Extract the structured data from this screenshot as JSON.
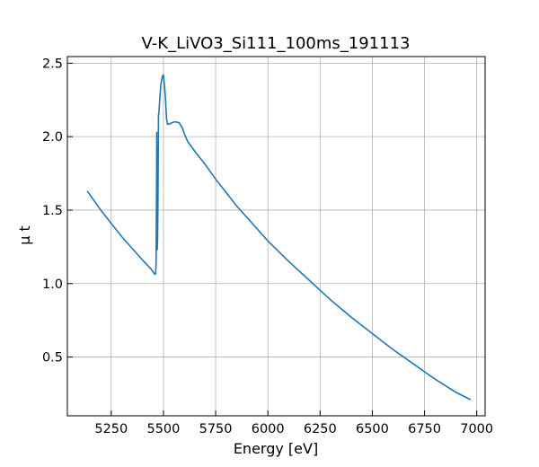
{
  "chart_data": {
    "type": "line",
    "title": "V-K_LiVO3_Si111_100ms_191113",
    "xlabel": "Energy [eV]",
    "ylabel": "μ t",
    "xlim": [
      5040,
      7040
    ],
    "ylim": [
      0.1,
      2.545
    ],
    "xticks": [
      5250,
      5500,
      5750,
      6000,
      6250,
      6500,
      6750,
      7000
    ],
    "yticks": [
      0.5,
      1.0,
      1.5,
      2.0,
      2.5
    ],
    "xtick_labels": [
      "5250",
      "5500",
      "5750",
      "6000",
      "6250",
      "6500",
      "6750",
      "7000"
    ],
    "ytick_labels": [
      "0.5",
      "1.0",
      "1.5",
      "2.0",
      "2.5"
    ],
    "grid": true,
    "series": [
      {
        "name": "",
        "color": "#1f77b4",
        "x": [
          5135,
          5200,
          5300,
          5400,
          5440,
          5455,
          5460,
          5463,
          5465,
          5467,
          5468,
          5469,
          5470,
          5472,
          5474,
          5476,
          5478,
          5482,
          5488,
          5495,
          5500,
          5505,
          5510,
          5515,
          5520,
          5525,
          5535,
          5550,
          5560,
          5575,
          5590,
          5600,
          5615,
          5630,
          5650,
          5700,
          5750,
          5800,
          5850,
          5900,
          6000,
          6100,
          6200,
          6300,
          6400,
          6500,
          6600,
          6700,
          6800,
          6900,
          6970
        ],
        "y": [
          1.63,
          1.5,
          1.32,
          1.16,
          1.1,
          1.07,
          1.062,
          1.07,
          1.15,
          1.7,
          2.03,
          1.7,
          1.23,
          1.3,
          1.6,
          2.15,
          2.15,
          2.25,
          2.36,
          2.41,
          2.42,
          2.35,
          2.25,
          2.12,
          2.085,
          2.085,
          2.09,
          2.1,
          2.1,
          2.095,
          2.06,
          2.02,
          1.97,
          1.94,
          1.9,
          1.81,
          1.71,
          1.62,
          1.53,
          1.45,
          1.29,
          1.15,
          1.02,
          0.89,
          0.77,
          0.66,
          0.55,
          0.45,
          0.35,
          0.26,
          0.21
        ]
      }
    ]
  }
}
